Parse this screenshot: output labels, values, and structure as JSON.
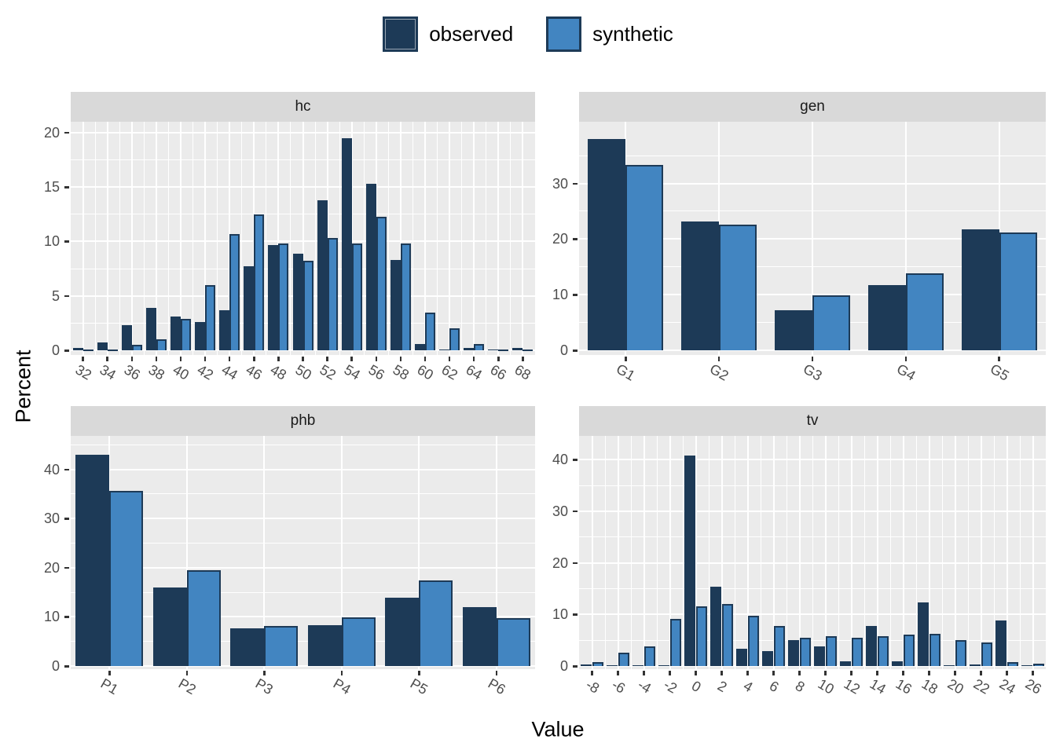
{
  "legend": {
    "items": [
      {
        "label": "observed",
        "color": "#1d3a57"
      },
      {
        "label": "synthetic",
        "color": "#4285c1"
      }
    ]
  },
  "axes": {
    "y_title": "Percent",
    "x_title": "Value"
  },
  "colors": {
    "observed_fill": "#1d3a57",
    "synthetic_fill": "#4285c1",
    "synthetic_border": "#1d3a57",
    "panel_background": "#ebebeb",
    "strip_background": "#d9d9d9",
    "gridline": "#ffffff",
    "tick_text": "#4d4d4d",
    "strip_text": "#1a1a1a"
  },
  "chart_data": [
    {
      "type": "bar",
      "facet": "hc",
      "categories": [
        "32",
        "34",
        "36",
        "38",
        "40",
        "42",
        "44",
        "46",
        "48",
        "50",
        "52",
        "54",
        "56",
        "58",
        "60",
        "62",
        "64",
        "66",
        "68"
      ],
      "series": [
        {
          "name": "observed",
          "values": [
            0.2,
            0.7,
            2.3,
            3.9,
            3.1,
            2.6,
            3.7,
            7.7,
            9.7,
            8.9,
            13.8,
            19.5,
            15.3,
            8.3,
            0.6,
            0.1,
            0.2,
            0.1,
            0.2
          ]
        },
        {
          "name": "synthetic",
          "values": [
            0.1,
            0.1,
            0.5,
            1.0,
            2.9,
            6.0,
            10.7,
            12.5,
            9.8,
            8.2,
            10.3,
            9.8,
            12.3,
            9.8,
            3.5,
            2.0,
            0.6,
            0.1,
            0.05
          ]
        }
      ],
      "y_ticks": [
        0,
        5,
        10,
        15,
        20
      ],
      "ylim": [
        0,
        21.0
      ],
      "x_continuous": true,
      "grid": true,
      "x_labels_rotated_deg": 30
    },
    {
      "type": "bar",
      "facet": "gen",
      "categories": [
        "G1",
        "G2",
        "G3",
        "G4",
        "G5"
      ],
      "series": [
        {
          "name": "observed",
          "values": [
            38.0,
            23.1,
            7.2,
            11.7,
            21.7
          ]
        },
        {
          "name": "synthetic",
          "values": [
            33.4,
            22.6,
            9.9,
            13.8,
            21.2
          ]
        }
      ],
      "y_ticks": [
        0,
        10,
        20,
        30
      ],
      "ylim": [
        0,
        41.1
      ],
      "x_continuous": false,
      "grid": true,
      "x_labels_rotated_deg": 30
    },
    {
      "type": "bar",
      "facet": "phb",
      "categories": [
        "P1",
        "P2",
        "P3",
        "P4",
        "P5",
        "P6"
      ],
      "series": [
        {
          "name": "observed",
          "values": [
            42.9,
            16.0,
            7.7,
            8.3,
            13.9,
            12.0
          ]
        },
        {
          "name": "synthetic",
          "values": [
            35.6,
            19.5,
            8.1,
            9.9,
            17.4,
            9.8
          ]
        }
      ],
      "y_ticks": [
        0,
        10,
        20,
        30,
        40
      ],
      "ylim": [
        0,
        46.8
      ],
      "x_continuous": false,
      "grid": true,
      "x_labels_rotated_deg": 30
    },
    {
      "type": "bar",
      "facet": "tv",
      "categories": [
        "-8",
        "-6",
        "-4",
        "-2",
        "0",
        "2",
        "4",
        "6",
        "8",
        "10",
        "12",
        "14",
        "16",
        "18",
        "20",
        "22",
        "24",
        "26"
      ],
      "series": [
        {
          "name": "observed",
          "values": [
            0.3,
            0.15,
            0.15,
            0.1,
            40.8,
            15.3,
            3.4,
            2.9,
            4.95,
            3.8,
            0.85,
            7.75,
            0.95,
            12.3,
            0.2,
            0.25,
            8.85,
            0.15
          ]
        },
        {
          "name": "synthetic",
          "values": [
            0.8,
            2.55,
            3.8,
            9.2,
            11.5,
            12.0,
            9.8,
            7.8,
            5.5,
            5.8,
            5.5,
            5.8,
            6.1,
            6.2,
            5.05,
            4.5,
            0.7,
            0.4
          ]
        }
      ],
      "y_ticks": [
        0,
        10,
        20,
        30,
        40
      ],
      "ylim": [
        0,
        44.6
      ],
      "x_continuous": true,
      "grid": true,
      "x_labels_rotated_deg": 30
    }
  ]
}
